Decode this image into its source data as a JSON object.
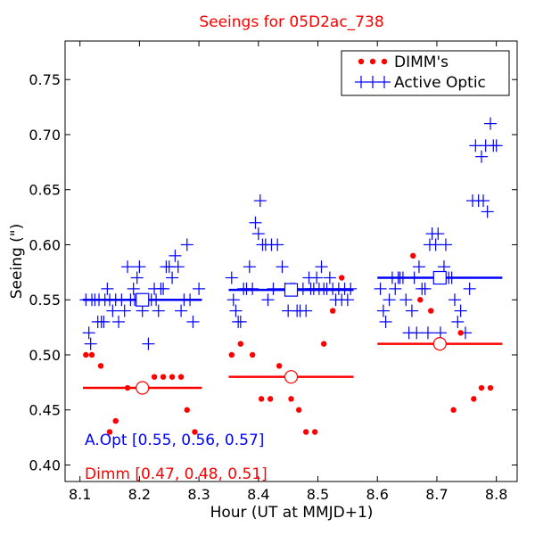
{
  "chart_data": {
    "type": "scatter",
    "title": "Seeings for 05D2ac_738",
    "xlabel": "Hour (UT at MMJD+1)",
    "ylabel": "Seeing (\")",
    "xlim": [
      8.075,
      8.835
    ],
    "ylim": [
      0.385,
      0.785
    ],
    "xticks": [
      "8.1",
      "8.2",
      "8.3",
      "8.4",
      "8.5",
      "8.6",
      "8.7",
      "8.8"
    ],
    "yticks": [
      "0.40",
      "0.45",
      "0.50",
      "0.55",
      "0.60",
      "0.65",
      "0.70",
      "0.75"
    ],
    "grid": false,
    "legend_position": "top-right",
    "colors": {
      "dimm": "#ff0000",
      "aopt": "#0000ff",
      "title": "#ff0000"
    },
    "series": [
      {
        "name": "Active Optic",
        "marker": "plus",
        "points": [
          [
            8.11,
            0.55
          ],
          [
            8.115,
            0.52
          ],
          [
            8.118,
            0.51
          ],
          [
            8.12,
            0.55
          ],
          [
            8.125,
            0.55
          ],
          [
            8.13,
            0.53
          ],
          [
            8.132,
            0.55
          ],
          [
            8.136,
            0.53
          ],
          [
            8.14,
            0.53
          ],
          [
            8.142,
            0.55
          ],
          [
            8.146,
            0.56
          ],
          [
            8.15,
            0.55
          ],
          [
            8.155,
            0.54
          ],
          [
            8.16,
            0.55
          ],
          [
            8.165,
            0.53
          ],
          [
            8.17,
            0.55
          ],
          [
            8.175,
            0.54
          ],
          [
            8.18,
            0.58
          ],
          [
            8.185,
            0.55
          ],
          [
            8.19,
            0.56
          ],
          [
            8.192,
            0.55
          ],
          [
            8.196,
            0.57
          ],
          [
            8.2,
            0.58
          ],
          [
            8.205,
            0.54
          ],
          [
            8.21,
            0.55
          ],
          [
            8.215,
            0.51
          ],
          [
            8.22,
            0.55
          ],
          [
            8.225,
            0.56
          ],
          [
            8.228,
            0.55
          ],
          [
            8.232,
            0.54
          ],
          [
            8.236,
            0.56
          ],
          [
            8.24,
            0.56
          ],
          [
            8.245,
            0.58
          ],
          [
            8.25,
            0.58
          ],
          [
            8.255,
            0.57
          ],
          [
            8.26,
            0.59
          ],
          [
            8.265,
            0.58
          ],
          [
            8.27,
            0.54
          ],
          [
            8.275,
            0.55
          ],
          [
            8.28,
            0.6
          ],
          [
            8.285,
            0.55
          ],
          [
            8.29,
            0.53
          ],
          [
            8.3,
            0.56
          ],
          [
            8.355,
            0.57
          ],
          [
            8.358,
            0.55
          ],
          [
            8.362,
            0.54
          ],
          [
            8.366,
            0.53
          ],
          [
            8.37,
            0.53
          ],
          [
            8.375,
            0.56
          ],
          [
            8.38,
            0.56
          ],
          [
            8.385,
            0.58
          ],
          [
            8.39,
            0.56
          ],
          [
            8.395,
            0.62
          ],
          [
            8.4,
            0.61
          ],
          [
            8.403,
            0.64
          ],
          [
            8.407,
            0.6
          ],
          [
            8.412,
            0.6
          ],
          [
            8.416,
            0.55
          ],
          [
            8.422,
            0.6
          ],
          [
            8.425,
            0.56
          ],
          [
            8.432,
            0.6
          ],
          [
            8.44,
            0.58
          ],
          [
            8.445,
            0.56
          ],
          [
            8.45,
            0.54
          ],
          [
            8.455,
            0.56
          ],
          [
            8.46,
            0.56
          ],
          [
            8.465,
            0.54
          ],
          [
            8.47,
            0.54
          ],
          [
            8.475,
            0.56
          ],
          [
            8.48,
            0.54
          ],
          [
            8.485,
            0.57
          ],
          [
            8.488,
            0.56
          ],
          [
            8.493,
            0.56
          ],
          [
            8.498,
            0.57
          ],
          [
            8.502,
            0.56
          ],
          [
            8.506,
            0.58
          ],
          [
            8.51,
            0.56
          ],
          [
            8.515,
            0.56
          ],
          [
            8.52,
            0.57
          ],
          [
            8.525,
            0.56
          ],
          [
            8.53,
            0.55
          ],
          [
            8.535,
            0.56
          ],
          [
            8.54,
            0.55
          ],
          [
            8.545,
            0.56
          ],
          [
            8.55,
            0.55
          ],
          [
            8.555,
            0.56
          ],
          [
            8.605,
            0.56
          ],
          [
            8.61,
            0.54
          ],
          [
            8.614,
            0.53
          ],
          [
            8.62,
            0.55
          ],
          [
            8.625,
            0.57
          ],
          [
            8.63,
            0.56
          ],
          [
            8.635,
            0.57
          ],
          [
            8.638,
            0.57
          ],
          [
            8.643,
            0.57
          ],
          [
            8.648,
            0.55
          ],
          [
            8.653,
            0.52
          ],
          [
            8.658,
            0.54
          ],
          [
            8.662,
            0.57
          ],
          [
            8.666,
            0.52
          ],
          [
            8.67,
            0.58
          ],
          [
            8.675,
            0.56
          ],
          [
            8.68,
            0.56
          ],
          [
            8.685,
            0.52
          ],
          [
            8.688,
            0.6
          ],
          [
            8.692,
            0.61
          ],
          [
            8.698,
            0.6
          ],
          [
            8.702,
            0.61
          ],
          [
            8.706,
            0.52
          ],
          [
            8.712,
            0.58
          ],
          [
            8.715,
            0.6
          ],
          [
            8.72,
            0.57
          ],
          [
            8.725,
            0.57
          ],
          [
            8.73,
            0.55
          ],
          [
            8.735,
            0.53
          ],
          [
            8.74,
            0.54
          ],
          [
            8.748,
            0.52
          ],
          [
            8.755,
            0.56
          ],
          [
            8.76,
            0.64
          ],
          [
            8.765,
            0.69
          ],
          [
            8.77,
            0.64
          ],
          [
            8.775,
            0.68
          ],
          [
            8.778,
            0.64
          ],
          [
            8.782,
            0.69
          ],
          [
            8.785,
            0.63
          ],
          [
            8.79,
            0.71
          ],
          [
            8.795,
            0.69
          ],
          [
            8.8,
            0.69
          ]
        ]
      },
      {
        "name": "DIMM's",
        "marker": "dot",
        "points": [
          [
            8.11,
            0.5
          ],
          [
            8.12,
            0.5
          ],
          [
            8.135,
            0.49
          ],
          [
            8.15,
            0.43
          ],
          [
            8.16,
            0.44
          ],
          [
            8.18,
            0.47
          ],
          [
            8.21,
            0.47
          ],
          [
            8.225,
            0.48
          ],
          [
            8.24,
            0.48
          ],
          [
            8.255,
            0.48
          ],
          [
            8.27,
            0.48
          ],
          [
            8.28,
            0.45
          ],
          [
            8.293,
            0.43
          ],
          [
            8.355,
            0.5
          ],
          [
            8.37,
            0.51
          ],
          [
            8.39,
            0.5
          ],
          [
            8.405,
            0.46
          ],
          [
            8.42,
            0.46
          ],
          [
            8.435,
            0.49
          ],
          [
            8.455,
            0.46
          ],
          [
            8.468,
            0.45
          ],
          [
            8.48,
            0.43
          ],
          [
            8.495,
            0.43
          ],
          [
            8.51,
            0.51
          ],
          [
            8.525,
            0.54
          ],
          [
            8.54,
            0.57
          ],
          [
            8.66,
            0.59
          ],
          [
            8.672,
            0.55
          ],
          [
            8.69,
            0.54
          ],
          [
            8.728,
            0.45
          ],
          [
            8.74,
            0.52
          ],
          [
            8.762,
            0.46
          ],
          [
            8.775,
            0.47
          ],
          [
            8.79,
            0.47
          ]
        ]
      }
    ],
    "summary_lines": [
      {
        "series": "aopt",
        "segments": [
          {
            "x": [
              8.105,
              8.305
            ],
            "y": 0.55
          },
          {
            "x": [
              8.35,
              8.56
            ],
            "y": 0.559
          },
          {
            "x": [
              8.6,
              8.81
            ],
            "y": 0.57
          }
        ]
      },
      {
        "series": "dimm",
        "segments": [
          {
            "x": [
              8.105,
              8.305
            ],
            "y": 0.47
          },
          {
            "x": [
              8.35,
              8.56
            ],
            "y": 0.48
          },
          {
            "x": [
              8.6,
              8.81
            ],
            "y": 0.51
          }
        ]
      }
    ],
    "summary_markers": [
      {
        "series": "aopt",
        "shape": "square",
        "points": [
          [
            8.205,
            0.55
          ],
          [
            8.455,
            0.559
          ],
          [
            8.705,
            0.57
          ]
        ]
      },
      {
        "series": "dimm",
        "shape": "circle",
        "points": [
          [
            8.205,
            0.47
          ],
          [
            8.455,
            0.48
          ],
          [
            8.705,
            0.51
          ]
        ]
      }
    ],
    "annotations": {
      "aopt": "A.Opt [0.55, 0.56, 0.57]",
      "dimm": "Dimm [0.47, 0.48, 0.51]"
    }
  }
}
